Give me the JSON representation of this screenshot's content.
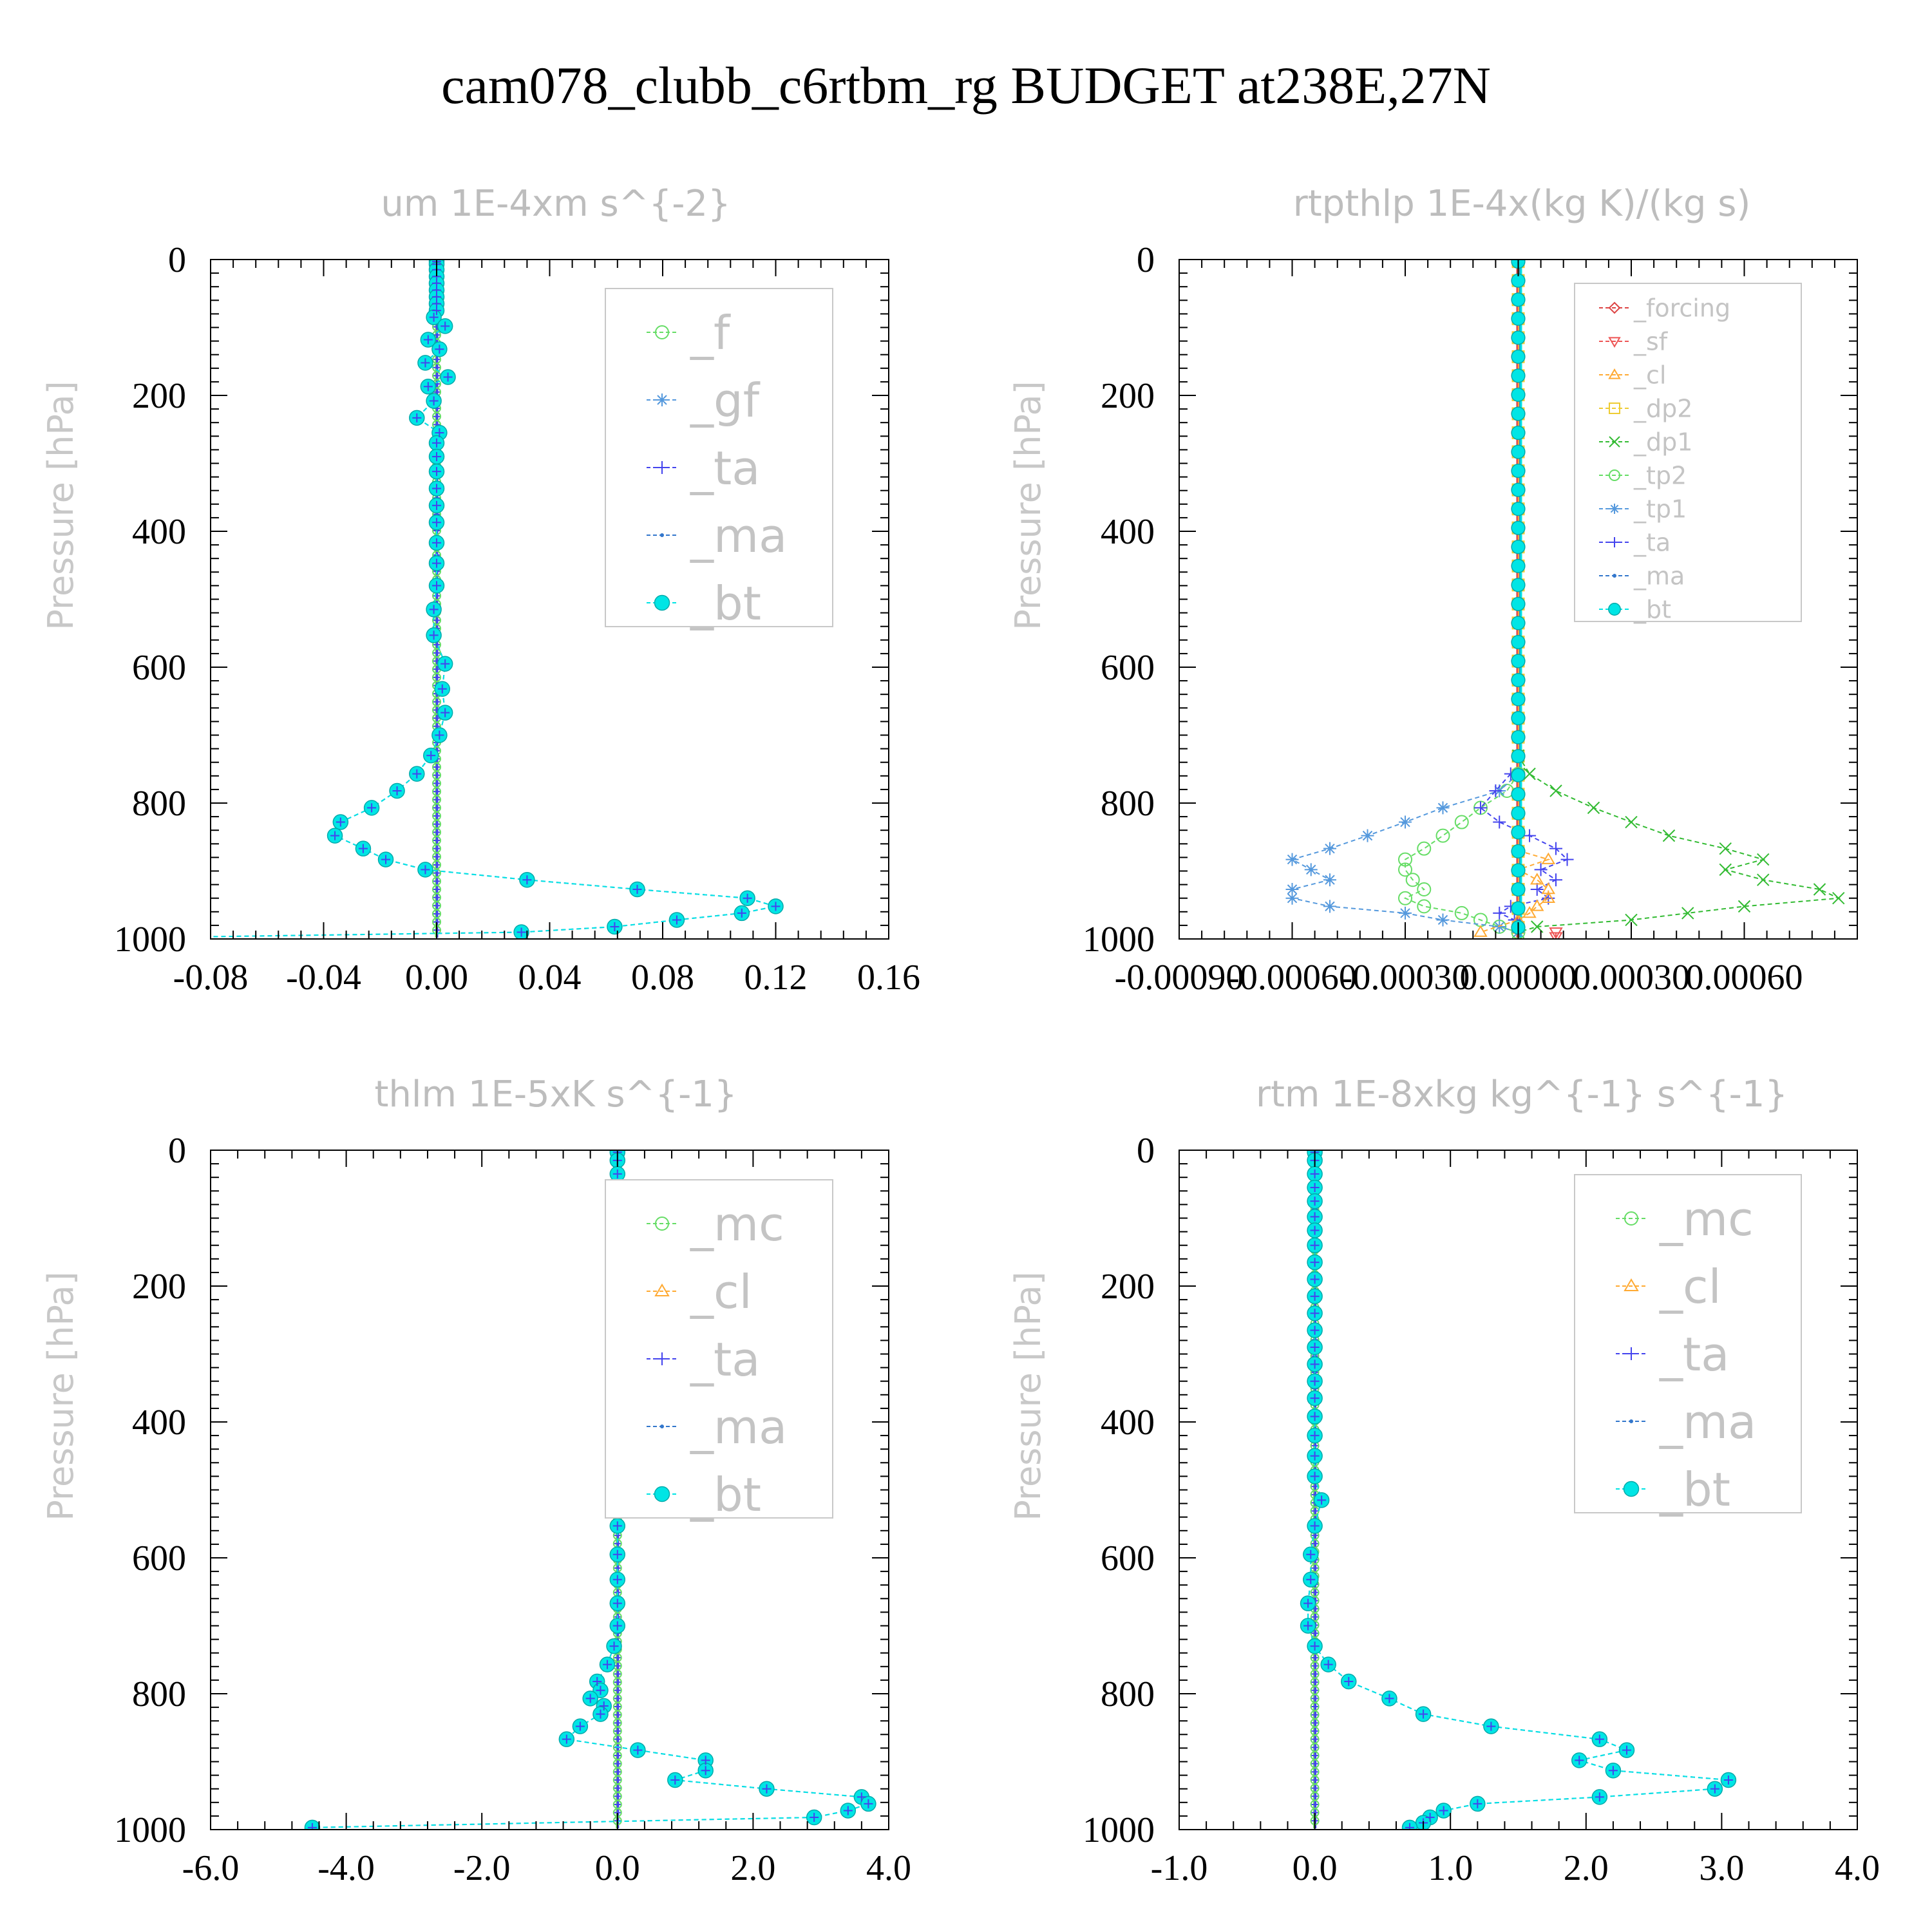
{
  "figure": {
    "title": "cam078_clubb_c6rtbm_rg  BUDGET at238E,27N",
    "colors": {
      "f": "#66dd66",
      "gf": "#5599dd",
      "ta": "#4444ee",
      "ma": "#3377cc",
      "bt": "#00e5e5",
      "forcing": "#dd4444",
      "sf": "#ee5555",
      "cl": "#ffaa33",
      "dp2": "#eecc33",
      "dp1": "#33bb33",
      "tp2": "#66dd66",
      "tp1": "#5599dd",
      "mc": "#66dd66"
    }
  },
  "chart_data": [
    {
      "type": "line",
      "title": "um  1E-4xm s^{-2}",
      "ylabel": "Pressure [hPa]",
      "xlim": [
        -0.08,
        0.16
      ],
      "ylim": [
        1000,
        0
      ],
      "xticks": [
        -0.08,
        -0.04,
        0.0,
        0.04,
        0.08,
        0.12,
        0.16
      ],
      "xtick_labels": [
        "-0.08",
        "-0.04",
        "0.00",
        "0.04",
        "0.08",
        "0.12",
        "0.16"
      ],
      "yticks": [
        0,
        200,
        400,
        600,
        800,
        1000
      ],
      "ytick_labels": [
        "0",
        "200",
        "400",
        "600",
        "800",
        "1000"
      ],
      "legend": [
        "_f",
        "_gf",
        "_ta",
        "_ma",
        "_bt"
      ],
      "legend_position": "top-right",
      "profile": {
        "levels": [
          3,
          7,
          15,
          25,
          35,
          45,
          55,
          65,
          75,
          85,
          98,
          118,
          132,
          152,
          173,
          187,
          208,
          233,
          255,
          270,
          290,
          312,
          337,
          362,
          387,
          417,
          447,
          480,
          515,
          553,
          595,
          632,
          667,
          700,
          730,
          757,
          782,
          807,
          828,
          848,
          867,
          883,
          898,
          913,
          927,
          940,
          952,
          962,
          972,
          982,
          990,
          997
        ],
        "values": [
          0.0,
          0.0,
          0.0,
          0.0,
          0.0,
          0.0,
          0.0,
          0.0,
          0.0,
          -0.001,
          0.003,
          -0.003,
          0.001,
          -0.004,
          0.004,
          -0.003,
          -0.001,
          -0.007,
          0.001,
          0.0,
          0.0,
          0.0,
          0.0,
          0.0,
          0.0,
          0.0,
          0.0,
          0.0,
          -0.001,
          -0.001,
          0.003,
          0.002,
          0.003,
          0.001,
          -0.002,
          -0.007,
          -0.014,
          -0.023,
          -0.034,
          -0.036,
          -0.026,
          -0.018,
          -0.004,
          0.032,
          0.071,
          0.11,
          0.12,
          0.108,
          0.085,
          0.063,
          0.03,
          -0.085
        ]
      },
      "near_zero": [
        "_f",
        "_gf",
        "_ta"
      ]
    },
    {
      "type": "line",
      "title": "rtpthlp  1E-4x(kg K)/(kg s)",
      "ylabel": "Pressure [hPa]",
      "xlim": [
        -0.0009,
        0.0009
      ],
      "ylim": [
        1000,
        0
      ],
      "xticks": [
        -0.0009,
        -0.0006,
        -0.0003,
        0.0,
        0.0003,
        0.0006
      ],
      "xtick_labels": [
        "-0.00090",
        "-0.00060",
        "-0.00030",
        "0.00000",
        "0.00030",
        "0.00060"
      ],
      "yticks": [
        0,
        200,
        400,
        600,
        800,
        1000
      ],
      "ytick_labels": [
        "0",
        "200",
        "400",
        "600",
        "800",
        "1000"
      ],
      "legend": [
        "_forcing",
        "_sf",
        "_cl",
        "_dp2",
        "_dp1",
        "_tp2",
        "_tp1",
        "_ta",
        "_ma",
        "_bt"
      ],
      "legend_position": "top-right",
      "dp1": {
        "levels": [
          730,
          757,
          782,
          807,
          828,
          848,
          867,
          883,
          898,
          913,
          927,
          940,
          952,
          962,
          972,
          982,
          990
        ],
        "values": [
          0.0,
          3e-05,
          0.0001,
          0.0002,
          0.0003,
          0.0004,
          0.00055,
          0.00065,
          0.00055,
          0.00065,
          0.0008,
          0.00085,
          0.0006,
          0.00045,
          0.0003,
          5e-05,
          0.0
        ]
      },
      "tp2": {
        "levels": [
          757,
          782,
          807,
          828,
          848,
          867,
          883,
          898,
          913,
          927,
          940,
          952,
          962,
          972,
          982,
          990
        ],
        "values": [
          0.0,
          -3e-05,
          -0.0001,
          -0.00015,
          -0.0002,
          -0.00025,
          -0.0003,
          -0.0003,
          -0.00028,
          -0.00025,
          -0.0003,
          -0.00025,
          -0.00015,
          -0.0001,
          -5e-05,
          0.0
        ]
      },
      "tp1": {
        "levels": [
          757,
          782,
          807,
          828,
          848,
          867,
          883,
          898,
          913,
          927,
          940,
          952,
          962,
          972,
          982,
          990
        ],
        "values": [
          0.0,
          -5e-05,
          -0.0002,
          -0.0003,
          -0.0004,
          -0.0005,
          -0.0006,
          -0.00055,
          -0.0005,
          -0.0006,
          -0.0006,
          -0.0005,
          -0.0003,
          -0.0002,
          -5e-05,
          0.0
        ]
      },
      "ta": {
        "levels": [
          757,
          782,
          807,
          828,
          848,
          867,
          883,
          898,
          913,
          927,
          940,
          952,
          962,
          972,
          982
        ],
        "values": [
          -2e-05,
          -6e-05,
          -0.0001,
          -5e-05,
          3e-05,
          0.0001,
          0.00013,
          6e-05,
          0.0001,
          5e-05,
          8e-05,
          -2e-05,
          -5e-05,
          -1e-05,
          0.0
        ]
      },
      "cl": {
        "levels": [
          870,
          883,
          898,
          913,
          927,
          940,
          952,
          962,
          972,
          990
        ],
        "values": [
          0.0,
          8e-05,
          0.0,
          5e-05,
          8e-05,
          8e-05,
          5e-05,
          3e-05,
          0.0,
          -0.0001
        ]
      },
      "sf": {
        "levels": [
          990,
          997
        ],
        "values": [
          0.0001,
          0.0001
        ]
      }
    },
    {
      "type": "line",
      "title": "thlm  1E-5xK s^{-1}",
      "ylabel": "Pressure [hPa]",
      "xlim": [
        -6.0,
        4.0
      ],
      "ylim": [
        1000,
        0
      ],
      "xticks": [
        -6.0,
        -4.0,
        -2.0,
        0.0,
        2.0,
        4.0
      ],
      "xtick_labels": [
        "-6.0",
        "-4.0",
        "-2.0",
        "0.0",
        "2.0",
        "4.0"
      ],
      "yticks": [
        0,
        200,
        400,
        600,
        800,
        1000
      ],
      "ytick_labels": [
        "0",
        "200",
        "400",
        "600",
        "800",
        "1000"
      ],
      "legend": [
        "_mc",
        "_cl",
        "_ta",
        "_ma",
        "_bt"
      ],
      "legend_position": "top-right",
      "profile": {
        "levels": [
          3,
          15,
          35,
          55,
          75,
          98,
          118,
          140,
          165,
          190,
          215,
          240,
          265,
          290,
          315,
          340,
          365,
          392,
          420,
          450,
          480,
          515,
          553,
          595,
          632,
          667,
          700,
          730,
          757,
          782,
          795,
          807,
          818,
          830,
          848,
          867,
          883,
          898,
          913,
          927,
          940,
          952,
          962,
          972,
          982,
          997
        ],
        "values": [
          0.0,
          0.0,
          0.0,
          0.0,
          0.0,
          0.0,
          0.0,
          0.0,
          0.0,
          0.0,
          0.0,
          0.0,
          0.0,
          0.0,
          0.0,
          0.0,
          0.0,
          0.0,
          -0.05,
          -0.05,
          -0.05,
          -0.05,
          0.0,
          0.0,
          0.0,
          0.0,
          0.0,
          -0.05,
          -0.15,
          -0.3,
          -0.25,
          -0.4,
          -0.2,
          -0.25,
          -0.55,
          -0.75,
          0.3,
          1.3,
          1.3,
          0.85,
          2.2,
          3.6,
          3.7,
          3.4,
          2.9,
          -4.5
        ]
      },
      "near_zero": [
        "_mc",
        "_cl",
        "_ta"
      ]
    },
    {
      "type": "line",
      "title": "rtm  1E-8xkg kg^{-1} s^{-1}",
      "ylabel": "Pressure [hPa]",
      "xlim": [
        -1.0,
        4.0
      ],
      "ylim": [
        1000,
        0
      ],
      "xticks": [
        -1.0,
        0.0,
        1.0,
        2.0,
        3.0,
        4.0
      ],
      "xtick_labels": [
        "-1.0",
        "0.0",
        "1.0",
        "2.0",
        "3.0",
        "4.0"
      ],
      "yticks": [
        0,
        200,
        400,
        600,
        800,
        1000
      ],
      "ytick_labels": [
        "0",
        "200",
        "400",
        "600",
        "800",
        "1000"
      ],
      "legend": [
        "_mc",
        "_cl",
        "_ta",
        "_ma",
        "_bt"
      ],
      "legend_position": "top-right",
      "profile": {
        "levels": [
          3,
          15,
          35,
          55,
          75,
          98,
          118,
          140,
          165,
          190,
          215,
          240,
          265,
          290,
          315,
          340,
          365,
          392,
          420,
          450,
          480,
          515,
          553,
          595,
          632,
          667,
          700,
          730,
          757,
          782,
          807,
          830,
          848,
          867,
          883,
          898,
          913,
          927,
          940,
          952,
          962,
          972,
          982,
          990,
          997
        ],
        "values": [
          0.0,
          0.0,
          0.0,
          0.0,
          0.0,
          0.0,
          0.0,
          0.0,
          0.0,
          0.0,
          0.0,
          0.0,
          0.0,
          0.0,
          0.0,
          0.0,
          0.0,
          0.0,
          0.0,
          0.0,
          0.0,
          0.05,
          0.0,
          -0.03,
          -0.03,
          -0.05,
          -0.05,
          0.0,
          0.1,
          0.25,
          0.55,
          0.8,
          1.3,
          2.1,
          2.3,
          1.95,
          2.2,
          3.05,
          2.95,
          2.1,
          1.2,
          0.95,
          0.85,
          0.8,
          0.7
        ]
      },
      "near_zero": [
        "_mc",
        "_cl",
        "_ta"
      ]
    }
  ]
}
